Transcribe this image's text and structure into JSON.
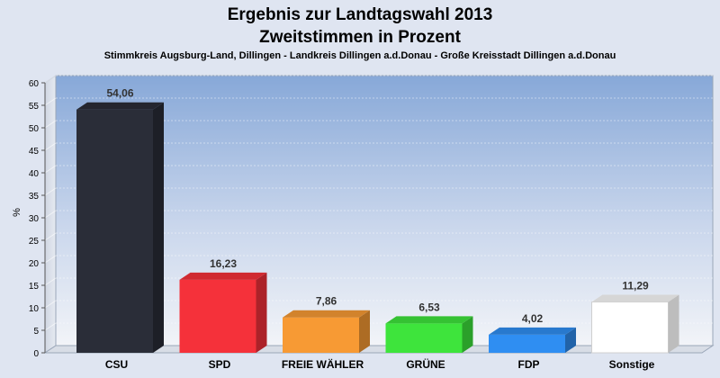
{
  "chart_data": {
    "type": "bar",
    "title": "Ergebnis zur Landtagswahl 2013",
    "subtitle_main": "Zweitstimmen in Prozent",
    "subtitle": "Stimmkreis Augsburg-Land, Dillingen - Landkreis Dillingen a.d.Donau - Große Kreisstadt Dillingen a.d.Donau",
    "ylabel": "%",
    "xlabel": "",
    "ylim": [
      0,
      60
    ],
    "yticks": [
      "0",
      "5",
      "10",
      "15",
      "20",
      "25",
      "30",
      "35",
      "40",
      "45",
      "50",
      "55",
      "60"
    ],
    "categories": [
      "CSU",
      "SPD",
      "FREIE WÄHLER",
      "GRÜNE",
      "FDP",
      "Sonstige"
    ],
    "values": [
      54.06,
      16.23,
      7.86,
      6.53,
      4.02,
      11.29
    ],
    "value_labels": [
      "54,06",
      "16,23",
      "7,86",
      "6,53",
      "4,02",
      "11,29"
    ],
    "colors": [
      "#2a2d38",
      "#f5313a",
      "#f79a34",
      "#3ee43c",
      "#2f8ef2",
      "#ffffff"
    ],
    "grid": true,
    "legend": "none"
  }
}
